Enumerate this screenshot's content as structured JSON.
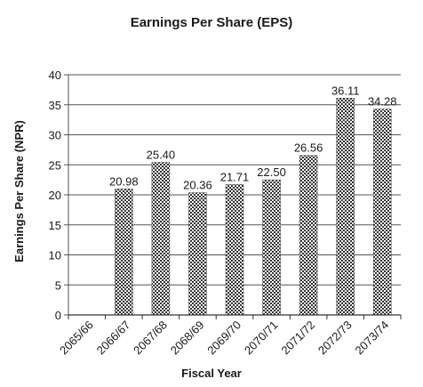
{
  "chart_data": {
    "type": "bar",
    "title": "Earnings Per Share (EPS)",
    "xlabel": "Fiscal Year",
    "ylabel": "Earnings Per Share (NPR)",
    "categories": [
      "2065/66",
      "2066/67",
      "2067/68",
      "2068/69",
      "2069/70",
      "2070/71",
      "2071/72",
      "2072/73",
      "2073/74"
    ],
    "values": [
      null,
      20.98,
      25.4,
      20.36,
      21.71,
      22.5,
      26.56,
      36.11,
      34.28
    ],
    "data_labels": [
      "",
      "20.98",
      "25.40",
      "20.36",
      "21.71",
      "22.50",
      "26.56",
      "36.11",
      "34.28"
    ],
    "ylim": [
      0,
      40
    ],
    "yticks": [
      "0",
      "5",
      "10",
      "15",
      "20",
      "25",
      "30",
      "35",
      "40"
    ],
    "grid": true,
    "legend": "none",
    "bar_fill": "checkered",
    "colors": {
      "bar_dark": "#333333",
      "bar_light": "#ffffff",
      "grid": "#555555",
      "text": "#1a1a1a"
    }
  }
}
